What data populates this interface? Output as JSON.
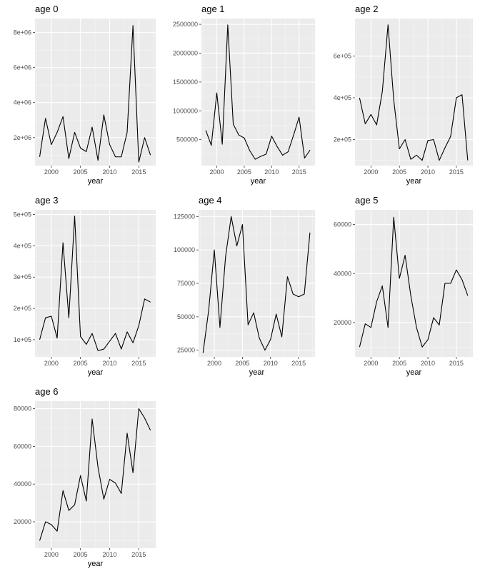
{
  "chart_data": [
    {
      "type": "line",
      "title": "age 0",
      "xlabel": "year",
      "ylabel": "",
      "x": [
        1998,
        1999,
        2000,
        2001,
        2002,
        2003,
        2004,
        2005,
        2006,
        2007,
        2008,
        2009,
        2010,
        2011,
        2012,
        2013,
        2014,
        2015,
        2016,
        2017
      ],
      "values": [
        900000,
        3100000,
        1600000,
        2300000,
        3200000,
        800000,
        2300000,
        1400000,
        1200000,
        2600000,
        700000,
        3300000,
        1600000,
        900000,
        900000,
        2300000,
        8400000,
        600000,
        2000000,
        1000000
      ],
      "xlim": [
        1997.2,
        2017.9
      ],
      "ylim": [
        400000,
        8800000
      ],
      "xticks": [
        2000,
        2005,
        2010,
        2015
      ],
      "xtick_labels": [
        "2000",
        "2005",
        "2010",
        "2015"
      ],
      "yticks": [
        2000000,
        4000000,
        6000000,
        8000000
      ],
      "ytick_labels": [
        "2e+06",
        "4e+06",
        "6e+06",
        "8e+06"
      ]
    },
    {
      "type": "line",
      "title": "age 1",
      "xlabel": "year",
      "ylabel": "",
      "x": [
        1998,
        1999,
        2000,
        2001,
        2002,
        2003,
        2004,
        2005,
        2006,
        2007,
        2008,
        2009,
        2010,
        2011,
        2012,
        2013,
        2014,
        2015,
        2016,
        2017
      ],
      "values": [
        660000,
        400000,
        1310000,
        420000,
        2490000,
        770000,
        580000,
        530000,
        310000,
        160000,
        210000,
        250000,
        560000,
        380000,
        230000,
        290000,
        580000,
        890000,
        180000,
        320000
      ],
      "xlim": [
        1997.2,
        2017.9
      ],
      "ylim": [
        50000,
        2600000
      ],
      "xticks": [
        2000,
        2005,
        2010,
        2015
      ],
      "xtick_labels": [
        "2000",
        "2005",
        "2010",
        "2015"
      ],
      "yticks": [
        500000,
        1000000,
        1500000,
        2000000,
        2500000
      ],
      "ytick_labels": [
        "500000",
        "1000000",
        "1500000",
        "2000000",
        "2500000"
      ]
    },
    {
      "type": "line",
      "title": "age 2",
      "xlabel": "year",
      "ylabel": "",
      "x": [
        1998,
        1999,
        2000,
        2001,
        2002,
        2003,
        2004,
        2005,
        2006,
        2007,
        2008,
        2009,
        2010,
        2011,
        2012,
        2013,
        2014,
        2015,
        2016,
        2017
      ],
      "values": [
        400000,
        275000,
        320000,
        270000,
        430000,
        750000,
        390000,
        155000,
        200000,
        105000,
        125000,
        100000,
        195000,
        200000,
        100000,
        160000,
        215000,
        400000,
        415000,
        100000
      ],
      "xlim": [
        1997.2,
        2017.9
      ],
      "ylim": [
        75000,
        780000
      ],
      "xticks": [
        2000,
        2005,
        2010,
        2015
      ],
      "xtick_labels": [
        "2000",
        "2005",
        "2010",
        "2015"
      ],
      "yticks": [
        200000,
        400000,
        600000
      ],
      "ytick_labels": [
        "2e+05",
        "4e+05",
        "6e+05"
      ]
    },
    {
      "type": "line",
      "title": "age 3",
      "xlabel": "year",
      "ylabel": "",
      "x": [
        1998,
        1999,
        2000,
        2001,
        2002,
        2003,
        2004,
        2005,
        2006,
        2007,
        2008,
        2009,
        2010,
        2011,
        2012,
        2013,
        2014,
        2015,
        2016,
        2017
      ],
      "values": [
        100000,
        170000,
        175000,
        105000,
        410000,
        170000,
        495000,
        110000,
        85000,
        120000,
        65000,
        70000,
        95000,
        120000,
        70000,
        125000,
        90000,
        145000,
        230000,
        220000
      ],
      "xlim": [
        1997.2,
        2017.9
      ],
      "ylim": [
        45000,
        515000
      ],
      "xticks": [
        2000,
        2005,
        2010,
        2015
      ],
      "xtick_labels": [
        "2000",
        "2005",
        "2010",
        "2015"
      ],
      "yticks": [
        100000,
        200000,
        300000,
        400000,
        500000
      ],
      "ytick_labels": [
        "1e+05",
        "2e+05",
        "3e+05",
        "4e+05",
        "5e+05"
      ]
    },
    {
      "type": "line",
      "title": "age 4",
      "xlabel": "year",
      "ylabel": "",
      "x": [
        1998,
        1999,
        2000,
        2001,
        2002,
        2003,
        2004,
        2005,
        2006,
        2007,
        2008,
        2009,
        2010,
        2011,
        2012,
        2013,
        2014,
        2015,
        2016,
        2017
      ],
      "values": [
        23000,
        55000,
        100000,
        42000,
        95000,
        125000,
        103000,
        119000,
        44000,
        53000,
        34000,
        25000,
        33000,
        52000,
        35000,
        80000,
        67000,
        65000,
        67000,
        113000
      ],
      "xlim": [
        1997.2,
        2017.9
      ],
      "ylim": [
        20000,
        130000
      ],
      "xticks": [
        2000,
        2005,
        2010,
        2015
      ],
      "xtick_labels": [
        "2000",
        "2005",
        "2010",
        "2015"
      ],
      "yticks": [
        25000,
        50000,
        75000,
        100000,
        125000
      ],
      "ytick_labels": [
        "25000",
        "50000",
        "75000",
        "100000",
        "125000"
      ]
    },
    {
      "type": "line",
      "title": "age 5",
      "xlabel": "year",
      "ylabel": "",
      "x": [
        1998,
        1999,
        2000,
        2001,
        2002,
        2003,
        2004,
        2005,
        2006,
        2007,
        2008,
        2009,
        2010,
        2011,
        2012,
        2013,
        2014,
        2015,
        2016,
        2017
      ],
      "values": [
        10000,
        19500,
        18000,
        28500,
        35000,
        18000,
        63000,
        38000,
        47500,
        31000,
        18000,
        10000,
        13000,
        22000,
        19000,
        36000,
        36000,
        41500,
        37500,
        31000
      ],
      "xlim": [
        1997.2,
        2017.9
      ],
      "ylim": [
        6000,
        66000
      ],
      "xticks": [
        2000,
        2005,
        2010,
        2015
      ],
      "xtick_labels": [
        "2000",
        "2005",
        "2010",
        "2015"
      ],
      "yticks": [
        20000,
        40000,
        60000
      ],
      "ytick_labels": [
        "20000",
        "40000",
        "60000"
      ]
    },
    {
      "type": "line",
      "title": "age 6",
      "xlabel": "year",
      "ylabel": "",
      "x": [
        1998,
        1999,
        2000,
        2001,
        2002,
        2003,
        2004,
        2005,
        2006,
        2007,
        2008,
        2009,
        2010,
        2011,
        2012,
        2013,
        2014,
        2015,
        2016,
        2017
      ],
      "values": [
        10000,
        20000,
        18500,
        15000,
        36500,
        26000,
        29000,
        44500,
        31000,
        74500,
        49000,
        32000,
        42500,
        40500,
        35000,
        67000,
        46000,
        80000,
        75000,
        68500
      ],
      "xlim": [
        1997.2,
        2017.9
      ],
      "ylim": [
        6000,
        84000
      ],
      "xticks": [
        2000,
        2005,
        2010,
        2015
      ],
      "xtick_labels": [
        "2000",
        "2005",
        "2010",
        "2015"
      ],
      "yticks": [
        20000,
        40000,
        60000,
        80000
      ],
      "ytick_labels": [
        "20000",
        "40000",
        "60000",
        "80000"
      ]
    }
  ],
  "style": {
    "panel_background": "#ebebeb",
    "grid_major_color": "#ffffff",
    "grid_minor_color": "#f5f5f5",
    "line_color": "#000000",
    "tick_color": "#333333",
    "tick_label_color": "#4d4d4d"
  }
}
